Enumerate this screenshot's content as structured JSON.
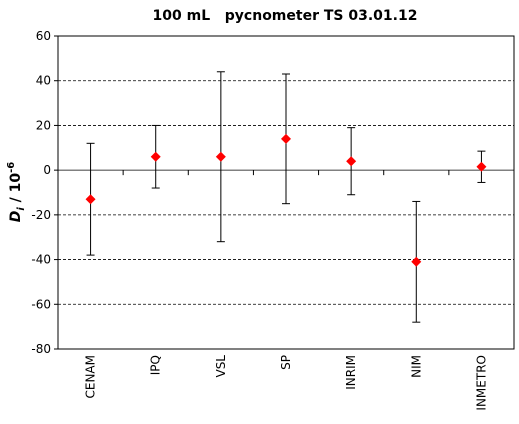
{
  "chart_data": {
    "type": "errorbar",
    "title": "100 mL   pycnometer TS 03.01.12",
    "y_label": {
      "symbol": "D",
      "subscript": "i",
      "text": " / 10",
      "exponent": "-6"
    },
    "categories": [
      "CENAM",
      "IPQ",
      "VSL",
      "SP",
      "INRIM",
      "NIM",
      "INMETRO"
    ],
    "values": [
      -13,
      6,
      6,
      14,
      4,
      -41,
      1.5
    ],
    "errors": [
      25,
      14,
      38,
      29,
      15,
      27,
      7
    ],
    "color": "#ff0000",
    "ylim": [
      -80,
      60
    ],
    "yticks": [
      -80,
      -60,
      -40,
      -20,
      0,
      20,
      40,
      60
    ],
    "grid": true
  }
}
